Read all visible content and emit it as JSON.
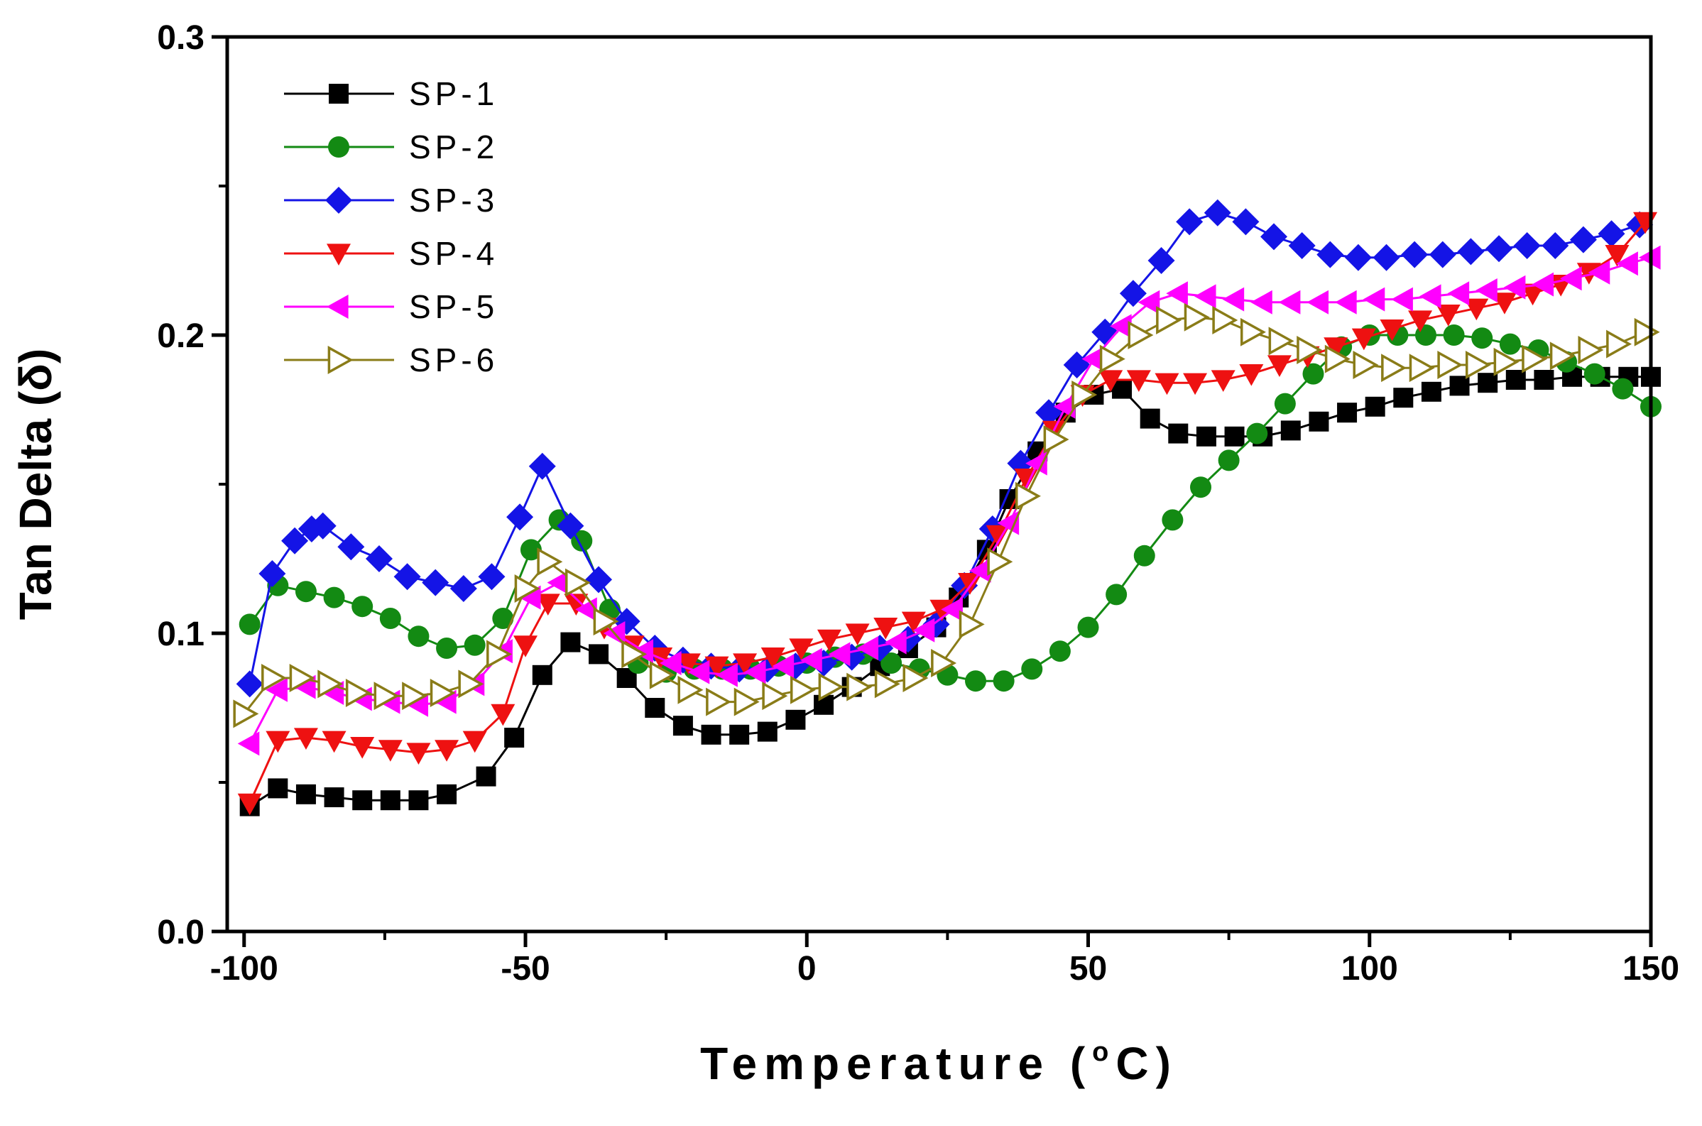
{
  "chart_data": {
    "type": "line",
    "xlabel": "Temperature (°C)",
    "xlabel_parts": {
      "pre": "Temperature (",
      "sup": "o",
      "post": "C)"
    },
    "ylabel": "Tan Delta (δ)",
    "xlim": [
      -103,
      150
    ],
    "ylim": [
      0.0,
      0.3
    ],
    "xticks": [
      -100,
      -50,
      0,
      50,
      100,
      150
    ],
    "xtick_labels": [
      "-100",
      "-50",
      "0",
      "50",
      "100",
      "150"
    ],
    "yticks": [
      0.0,
      0.1,
      0.2,
      0.3
    ],
    "ytick_labels": [
      "0.0",
      "0.1",
      "0.2",
      "0.3"
    ],
    "grid": false,
    "legend_position": "top-left",
    "series": [
      {
        "name": "SP-1",
        "color": "#000000",
        "marker": "square",
        "x": [
          -99,
          -94,
          -89,
          -84,
          -79,
          -74,
          -69,
          -64,
          -57,
          -52,
          -47,
          -42,
          -37,
          -32,
          -27,
          -22,
          -17,
          -12,
          -7,
          -2,
          3,
          8,
          13,
          18,
          23,
          27,
          32,
          36,
          41,
          46,
          51,
          56,
          61,
          66,
          71,
          76,
          81,
          86,
          91,
          96,
          101,
          106,
          111,
          116,
          121,
          126,
          131,
          136,
          141,
          146,
          150
        ],
        "y": [
          0.042,
          0.048,
          0.046,
          0.045,
          0.044,
          0.044,
          0.044,
          0.046,
          0.052,
          0.065,
          0.086,
          0.097,
          0.093,
          0.085,
          0.075,
          0.069,
          0.066,
          0.066,
          0.067,
          0.071,
          0.076,
          0.082,
          0.089,
          0.095,
          0.102,
          0.112,
          0.128,
          0.145,
          0.161,
          0.174,
          0.18,
          0.182,
          0.172,
          0.167,
          0.166,
          0.166,
          0.166,
          0.168,
          0.171,
          0.174,
          0.176,
          0.179,
          0.181,
          0.183,
          0.184,
          0.185,
          0.185,
          0.186,
          0.186,
          0.186,
          0.186
        ]
      },
      {
        "name": "SP-2",
        "color": "#138a13",
        "marker": "circle",
        "x": [
          -99,
          -94,
          -89,
          -84,
          -79,
          -74,
          -69,
          -64,
          -59,
          -54,
          -49,
          -44,
          -40,
          -35,
          -30,
          -25,
          -20,
          -15,
          -10,
          -5,
          0,
          5,
          10,
          15,
          20,
          25,
          30,
          35,
          40,
          45,
          50,
          55,
          60,
          65,
          70,
          75,
          80,
          85,
          90,
          95,
          100,
          105,
          110,
          115,
          120,
          125,
          130,
          135,
          140,
          145,
          150
        ],
        "y": [
          0.103,
          0.116,
          0.114,
          0.112,
          0.109,
          0.105,
          0.099,
          0.095,
          0.096,
          0.105,
          0.128,
          0.138,
          0.131,
          0.108,
          0.09,
          0.087,
          0.088,
          0.088,
          0.088,
          0.089,
          0.09,
          0.092,
          0.093,
          0.09,
          0.088,
          0.086,
          0.084,
          0.084,
          0.088,
          0.094,
          0.102,
          0.113,
          0.126,
          0.138,
          0.149,
          0.158,
          0.167,
          0.177,
          0.187,
          0.196,
          0.2,
          0.2,
          0.2,
          0.2,
          0.199,
          0.197,
          0.195,
          0.191,
          0.187,
          0.182,
          0.176
        ]
      },
      {
        "name": "SP-3",
        "color": "#1414e6",
        "marker": "diamond",
        "x": [
          -99,
          -95,
          -91,
          -88,
          -86,
          -81,
          -76,
          -71,
          -66,
          -61,
          -56,
          -51,
          -47,
          -42,
          -37,
          -32,
          -27,
          -22,
          -17,
          -12,
          -7,
          -2,
          3,
          8,
          13,
          18,
          23,
          28,
          33,
          38,
          43,
          48,
          53,
          58,
          63,
          68,
          73,
          78,
          83,
          88,
          93,
          98,
          103,
          108,
          113,
          118,
          123,
          128,
          133,
          138,
          143,
          148
        ],
        "y": [
          0.083,
          0.12,
          0.131,
          0.135,
          0.136,
          0.129,
          0.125,
          0.119,
          0.117,
          0.115,
          0.119,
          0.139,
          0.156,
          0.136,
          0.118,
          0.104,
          0.095,
          0.091,
          0.089,
          0.088,
          0.088,
          0.089,
          0.09,
          0.092,
          0.095,
          0.098,
          0.103,
          0.116,
          0.135,
          0.157,
          0.174,
          0.19,
          0.201,
          0.214,
          0.225,
          0.238,
          0.241,
          0.238,
          0.233,
          0.23,
          0.227,
          0.226,
          0.226,
          0.227,
          0.227,
          0.228,
          0.229,
          0.23,
          0.23,
          0.232,
          0.234,
          0.237
        ]
      },
      {
        "name": "SP-4",
        "color": "#ee1111",
        "marker": "triangle-down",
        "x": [
          -99,
          -94,
          -89,
          -84,
          -79,
          -74,
          -69,
          -64,
          -59,
          -54,
          -50,
          -46,
          -41,
          -36,
          -31,
          -26,
          -21,
          -16,
          -11,
          -6,
          -1,
          4,
          9,
          14,
          19,
          24,
          29,
          34,
          39,
          44,
          49,
          54,
          59,
          64,
          69,
          74,
          79,
          84,
          89,
          94,
          99,
          104,
          109,
          114,
          119,
          124,
          129,
          134,
          139,
          144,
          149
        ],
        "y": [
          0.043,
          0.064,
          0.065,
          0.064,
          0.062,
          0.061,
          0.06,
          0.061,
          0.064,
          0.073,
          0.096,
          0.11,
          0.11,
          0.102,
          0.096,
          0.092,
          0.09,
          0.089,
          0.09,
          0.092,
          0.095,
          0.098,
          0.1,
          0.102,
          0.104,
          0.108,
          0.117,
          0.133,
          0.152,
          0.168,
          0.18,
          0.185,
          0.185,
          0.184,
          0.184,
          0.185,
          0.187,
          0.19,
          0.193,
          0.196,
          0.199,
          0.202,
          0.205,
          0.207,
          0.209,
          0.211,
          0.214,
          0.217,
          0.221,
          0.227,
          0.238
        ]
      },
      {
        "name": "SP-5",
        "color": "#ff00ff",
        "marker": "triangle-left",
        "x": [
          -99,
          -94,
          -89,
          -84,
          -79,
          -74,
          -69,
          -64,
          -59,
          -54,
          -49,
          -44,
          -39,
          -34,
          -29,
          -24,
          -19,
          -14,
          -9,
          -4,
          1,
          6,
          11,
          16,
          21,
          26,
          31,
          36,
          41,
          46,
          51,
          56,
          61,
          66,
          71,
          76,
          81,
          86,
          91,
          96,
          101,
          106,
          111,
          116,
          121,
          126,
          131,
          136,
          141,
          146,
          150
        ],
        "y": [
          0.063,
          0.081,
          0.082,
          0.08,
          0.078,
          0.077,
          0.076,
          0.077,
          0.083,
          0.094,
          0.112,
          0.117,
          0.108,
          0.1,
          0.094,
          0.09,
          0.087,
          0.086,
          0.087,
          0.089,
          0.091,
          0.093,
          0.095,
          0.097,
          0.101,
          0.108,
          0.121,
          0.137,
          0.157,
          0.176,
          0.192,
          0.203,
          0.211,
          0.214,
          0.213,
          0.212,
          0.211,
          0.211,
          0.211,
          0.211,
          0.212,
          0.212,
          0.213,
          0.214,
          0.215,
          0.216,
          0.217,
          0.219,
          0.221,
          0.224,
          0.226
        ]
      },
      {
        "name": "SP-6",
        "color": "#8a7c18",
        "marker": "triangle-right-open",
        "x": [
          -100,
          -95,
          -90,
          -85,
          -80,
          -75,
          -70,
          -65,
          -60,
          -55,
          -50,
          -46,
          -41,
          -36,
          -31,
          -26,
          -21,
          -16,
          -11,
          -6,
          -1,
          4,
          9,
          14,
          19,
          24,
          29,
          34,
          39,
          44,
          49,
          54,
          59,
          64,
          69,
          74,
          79,
          84,
          89,
          94,
          99,
          104,
          109,
          114,
          119,
          124,
          129,
          134,
          139,
          144,
          149
        ],
        "y": [
          0.073,
          0.085,
          0.085,
          0.083,
          0.08,
          0.079,
          0.079,
          0.08,
          0.083,
          0.093,
          0.115,
          0.124,
          0.117,
          0.104,
          0.093,
          0.086,
          0.081,
          0.077,
          0.077,
          0.079,
          0.081,
          0.082,
          0.082,
          0.083,
          0.085,
          0.09,
          0.103,
          0.124,
          0.146,
          0.165,
          0.18,
          0.192,
          0.2,
          0.205,
          0.206,
          0.205,
          0.201,
          0.198,
          0.195,
          0.192,
          0.19,
          0.189,
          0.189,
          0.19,
          0.19,
          0.191,
          0.192,
          0.193,
          0.195,
          0.197,
          0.201
        ]
      }
    ]
  }
}
